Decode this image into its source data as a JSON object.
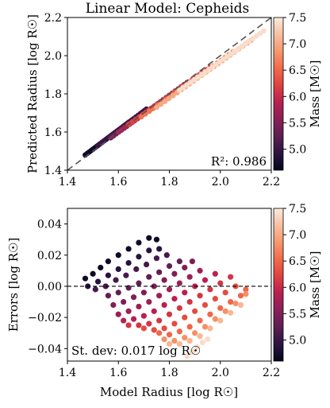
{
  "colors": {
    "colormap": [
      "#03051a",
      "#2b1443",
      "#5b1e51",
      "#8a1f57",
      "#b91f50",
      "#e0413e",
      "#f26a4a",
      "#f6986c",
      "#f8bfa0",
      "#faebdd"
    ],
    "reference_line": "#555555",
    "axis": "#000000"
  },
  "chart_data": [
    {
      "type": "scatter",
      "title": "Linear Model: Cepheids",
      "xlabel": "",
      "ylabel": "Predicted Radius [log R☉]",
      "xlim": [
        1.4,
        2.2
      ],
      "ylim": [
        1.4,
        2.2
      ],
      "xticks": [
        "1.4",
        "1.6",
        "1.8",
        "2.0",
        "2.2"
      ],
      "yticks": [
        "1.4",
        "1.6",
        "1.8",
        "2.0",
        "2.2"
      ],
      "annotation": "R²: 0.986",
      "reference_line": "y = x (dashed)",
      "colorbar": {
        "label": "Mass [M☉]",
        "range": [
          4.6,
          7.5
        ],
        "ticks": [
          "5.0",
          "5.5",
          "6.0",
          "6.5",
          "7.0",
          "7.5"
        ]
      },
      "points_by_mass": [
        {
          "mass": 4.7,
          "x_range": [
            1.47,
            1.64
          ],
          "y_range": [
            1.48,
            1.65
          ]
        },
        {
          "mass": 5.0,
          "x_range": [
            1.52,
            1.71
          ],
          "y_range": [
            1.53,
            1.72
          ]
        },
        {
          "mass": 5.4,
          "x_range": [
            1.57,
            1.81
          ],
          "y_range": [
            1.57,
            1.8
          ]
        },
        {
          "mass": 5.8,
          "x_range": [
            1.6,
            1.87
          ],
          "y_range": [
            1.6,
            1.86
          ]
        },
        {
          "mass": 6.2,
          "x_range": [
            1.64,
            1.96
          ],
          "y_range": [
            1.64,
            1.94
          ]
        },
        {
          "mass": 6.6,
          "x_range": [
            1.69,
            2.05
          ],
          "y_range": [
            1.68,
            2.02
          ]
        },
        {
          "mass": 7.0,
          "x_range": [
            1.75,
            2.12
          ],
          "y_range": [
            1.73,
            2.08
          ]
        },
        {
          "mass": 7.4,
          "x_range": [
            1.84,
            2.17
          ],
          "y_range": [
            1.82,
            2.13
          ]
        }
      ]
    },
    {
      "type": "scatter",
      "title": "",
      "xlabel": "Model Radius [log R☉]",
      "ylabel": "Errors [log R☉]",
      "xlim": [
        1.4,
        2.2
      ],
      "ylim": [
        -0.048,
        0.05
      ],
      "xticks": [
        "1.4",
        "1.6",
        "1.8",
        "2.0",
        "2.2"
      ],
      "yticks": [
        "−0.04",
        "−0.02",
        "0.00",
        "0.02",
        "0.04"
      ],
      "annotation": "St. dev: 0.017 log R☉",
      "reference_line": "y = 0 (dashed)",
      "colorbar": {
        "label": "Mass [M☉]",
        "range": [
          4.6,
          7.5
        ],
        "ticks": [
          "5.0",
          "5.5",
          "6.0",
          "6.5",
          "7.0",
          "7.5"
        ]
      },
      "points_by_mass": [
        {
          "mass": 4.7,
          "x": [
            1.47,
            1.5,
            1.53,
            1.56,
            1.6,
            1.64,
            1.68,
            1.72,
            1.75
          ],
          "y": [
            0.005,
            0.008,
            0.012,
            0.016,
            0.02,
            0.024,
            0.028,
            0.031,
            0.03
          ]
        },
        {
          "mass": 4.9,
          "x": [
            1.48,
            1.52,
            1.56,
            1.6,
            1.64,
            1.68,
            1.72,
            1.76
          ],
          "y": [
            0.0,
            0.003,
            0.007,
            0.011,
            0.015,
            0.019,
            0.023,
            0.024
          ]
        },
        {
          "mass": 5.1,
          "x": [
            1.51,
            1.55,
            1.59,
            1.63,
            1.67,
            1.71,
            1.75,
            1.79
          ],
          "y": [
            -0.002,
            0.0,
            0.004,
            0.007,
            0.011,
            0.014,
            0.018,
            0.02
          ]
        },
        {
          "mass": 5.3,
          "x": [
            1.56,
            1.6,
            1.64,
            1.68,
            1.72,
            1.76,
            1.8,
            1.84
          ],
          "y": [
            -0.006,
            -0.004,
            -0.001,
            0.002,
            0.006,
            0.009,
            0.013,
            0.016
          ]
        },
        {
          "mass": 5.5,
          "x": [
            1.58,
            1.62,
            1.66,
            1.7,
            1.74,
            1.78,
            1.82,
            1.86,
            1.89
          ],
          "y": [
            -0.012,
            -0.01,
            -0.007,
            -0.004,
            0.0,
            0.004,
            0.008,
            0.012,
            0.016
          ]
        },
        {
          "mass": 5.7,
          "x": [
            1.6,
            1.64,
            1.68,
            1.72,
            1.76,
            1.8,
            1.84,
            1.88,
            1.92
          ],
          "y": [
            -0.018,
            -0.016,
            -0.013,
            -0.01,
            -0.006,
            -0.002,
            0.002,
            0.006,
            0.01
          ]
        },
        {
          "mass": 5.9,
          "x": [
            1.62,
            1.66,
            1.7,
            1.74,
            1.78,
            1.82,
            1.86,
            1.9,
            1.94,
            1.98
          ],
          "y": [
            -0.022,
            -0.021,
            -0.019,
            -0.016,
            -0.012,
            -0.008,
            -0.004,
            0.0,
            0.004,
            0.008
          ]
        },
        {
          "mass": 6.1,
          "x": [
            1.64,
            1.68,
            1.72,
            1.76,
            1.8,
            1.84,
            1.88,
            1.92,
            1.96,
            2.0,
            2.04
          ],
          "y": [
            -0.025,
            -0.025,
            -0.024,
            -0.022,
            -0.018,
            -0.014,
            -0.01,
            -0.006,
            -0.002,
            0.002,
            0.006
          ]
        },
        {
          "mass": 6.3,
          "x": [
            1.7,
            1.74,
            1.78,
            1.82,
            1.86,
            1.9,
            1.94,
            1.98,
            2.02,
            2.06
          ],
          "y": [
            -0.027,
            -0.028,
            -0.027,
            -0.024,
            -0.02,
            -0.016,
            -0.012,
            -0.008,
            -0.004,
            0.0
          ]
        },
        {
          "mass": 6.5,
          "x": [
            1.76,
            1.8,
            1.84,
            1.88,
            1.92,
            1.96,
            2.0,
            2.04,
            2.08,
            2.1
          ],
          "y": [
            -0.03,
            -0.031,
            -0.029,
            -0.026,
            -0.022,
            -0.018,
            -0.014,
            -0.01,
            -0.006,
            -0.002
          ]
        },
        {
          "mass": 6.8,
          "x": [
            1.78,
            1.82,
            1.86,
            1.9,
            1.94,
            1.98,
            2.02,
            2.06,
            2.1
          ],
          "y": [
            -0.034,
            -0.035,
            -0.033,
            -0.03,
            -0.026,
            -0.021,
            -0.016,
            -0.011,
            -0.005
          ]
        },
        {
          "mass": 7.1,
          "x": [
            1.8,
            1.84,
            1.88,
            1.92,
            1.96,
            2.0,
            2.04,
            2.08
          ],
          "y": [
            -0.037,
            -0.037,
            -0.035,
            -0.032,
            -0.027,
            -0.022,
            -0.017,
            -0.012
          ]
        },
        {
          "mass": 7.4,
          "x": [
            1.87,
            1.89,
            1.91,
            1.93,
            1.95
          ],
          "y": [
            -0.045,
            -0.042,
            -0.039,
            -0.036,
            -0.034
          ]
        }
      ]
    }
  ]
}
